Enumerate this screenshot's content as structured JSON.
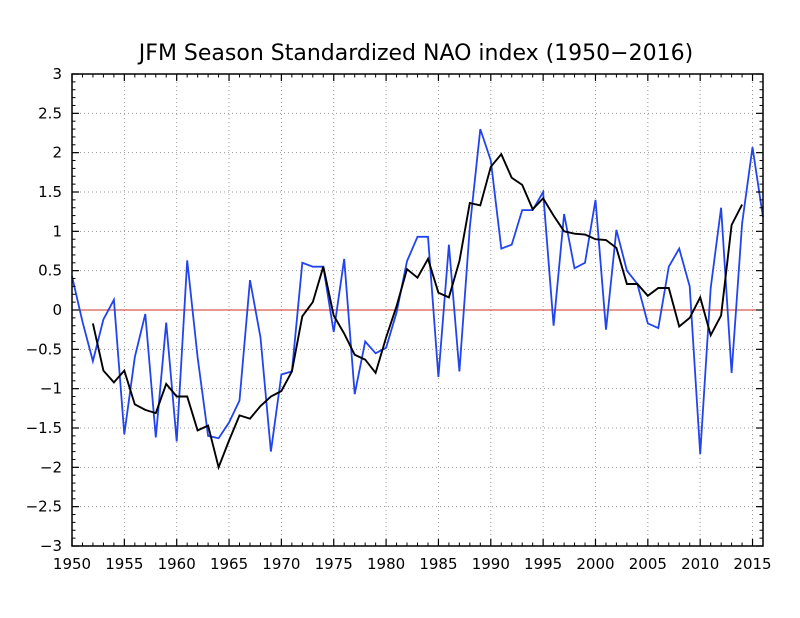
{
  "chart_data": {
    "type": "line",
    "title": "JFM Season Standardized NAO index (1950−2016)",
    "xlabel": "",
    "ylabel": "",
    "xlim": [
      1950,
      2016
    ],
    "ylim": [
      -3,
      3
    ],
    "x_ticks": [
      "1950",
      "1955",
      "1960",
      "1965",
      "1970",
      "1975",
      "1980",
      "1985",
      "1990",
      "1995",
      "2000",
      "2005",
      "2010",
      "2015"
    ],
    "y_ticks": [
      "3",
      "2.5",
      "2",
      "1.5",
      "1",
      "0.5",
      "0",
      "−0.5",
      "−1",
      "−1.5",
      "−2",
      "−2.5",
      "−3"
    ],
    "grid": true,
    "zero_line": 0,
    "colors": {
      "series_blue": "#2244ee",
      "series_black": "#000000",
      "zero_line": "#d03020",
      "grid": "#9a9a9a"
    },
    "series": [
      {
        "color": "#2244ee",
        "x": [
          1950,
          1951,
          1952,
          1953,
          1954,
          1955,
          1956,
          1957,
          1958,
          1959,
          1960,
          1961,
          1962,
          1963,
          1964,
          1965,
          1966,
          1967,
          1968,
          1969,
          1970,
          1971,
          1972,
          1973,
          1974,
          1975,
          1976,
          1977,
          1978,
          1979,
          1980,
          1981,
          1982,
          1983,
          1984,
          1985,
          1986,
          1987,
          1988,
          1989,
          1990,
          1991,
          1992,
          1993,
          1994,
          1995,
          1996,
          1997,
          1998,
          1999,
          2000,
          2001,
          2002,
          2003,
          2004,
          2005,
          2006,
          2007,
          2008,
          2009,
          2010,
          2011,
          2012,
          2013,
          2014,
          2015,
          2016
        ],
        "values": [
          0.43,
          -0.15,
          -0.65,
          -0.12,
          0.13,
          -1.58,
          -0.6,
          -0.05,
          -1.62,
          -0.16,
          -1.67,
          0.63,
          -0.6,
          -1.6,
          -1.63,
          -1.43,
          -1.15,
          0.38,
          -0.35,
          -1.8,
          -0.82,
          -0.78,
          0.6,
          0.55,
          0.55,
          -0.28,
          0.65,
          -1.07,
          -0.4,
          -0.55,
          -0.48,
          -0.03,
          0.62,
          0.93,
          0.93,
          -0.85,
          0.83,
          -0.78,
          1.05,
          2.3,
          1.9,
          0.78,
          0.83,
          1.27,
          1.27,
          1.5,
          -0.2,
          1.22,
          0.53,
          0.6,
          1.4,
          -0.25,
          1.02,
          0.5,
          0.33,
          -0.17,
          -0.23,
          0.55,
          0.78,
          0.3,
          -1.83,
          0.28,
          1.3,
          -0.8,
          1.1,
          2.07,
          1.18
        ]
      },
      {
        "color": "#000000",
        "x": [
          1952,
          1953,
          1954,
          1955,
          1956,
          1957,
          1958,
          1959,
          1960,
          1961,
          1962,
          1963,
          1964,
          1965,
          1966,
          1967,
          1968,
          1969,
          1970,
          1971,
          1972,
          1973,
          1974,
          1975,
          1976,
          1977,
          1978,
          1979,
          1980,
          1981,
          1982,
          1983,
          1984,
          1985,
          1986,
          1987,
          1988,
          1989,
          1990,
          1991,
          1992,
          1993,
          1994,
          1995,
          1996,
          1997,
          1998,
          1999,
          2000,
          2001,
          2002,
          2003,
          2004,
          2005,
          2006,
          2007,
          2008,
          2009,
          2010,
          2011,
          2012,
          2013,
          2014
        ],
        "values": [
          -0.17,
          -0.77,
          -0.92,
          -0.77,
          -1.2,
          -1.27,
          -1.31,
          -0.94,
          -1.1,
          -1.1,
          -1.53,
          -1.47,
          -2.0,
          -1.66,
          -1.34,
          -1.38,
          -1.22,
          -1.1,
          -1.03,
          -0.78,
          -0.08,
          0.1,
          0.55,
          -0.07,
          -0.3,
          -0.57,
          -0.63,
          -0.8,
          -0.35,
          0.05,
          0.52,
          0.41,
          0.65,
          0.22,
          0.16,
          0.62,
          1.36,
          1.33,
          1.82,
          1.98,
          1.68,
          1.59,
          1.28,
          1.42,
          1.2,
          1.0,
          0.97,
          0.96,
          0.9,
          0.89,
          0.79,
          0.33,
          0.33,
          0.18,
          0.28,
          0.28,
          -0.21,
          -0.1,
          0.16,
          -0.32,
          -0.07,
          1.08,
          1.34
        ]
      }
    ]
  }
}
